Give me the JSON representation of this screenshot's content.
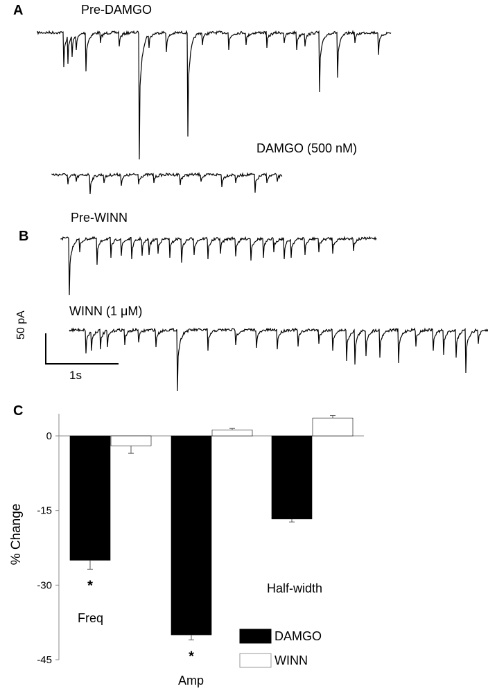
{
  "panels": {
    "a": "A",
    "b": "B",
    "c": "C"
  },
  "traces": {
    "pre_damgo": "Pre-DAMGO",
    "damgo": "DAMGO (500 nM)",
    "pre_winn": "Pre-WINN",
    "winn": "WINN (1 μM)"
  },
  "scale_bar": {
    "current": "50 pA",
    "time": "1s"
  },
  "chart_data": {
    "type": "bar",
    "categories": [
      "Freq",
      "Amp",
      "Half-width"
    ],
    "series": [
      {
        "name": "DAMGO",
        "values": [
          -25,
          -40,
          -16.7
        ],
        "errors": [
          1.8,
          1.0,
          0.6
        ],
        "color": "#000000"
      },
      {
        "name": "WINN",
        "values": [
          -2.0,
          1.2,
          3.6
        ],
        "errors": [
          1.5,
          0.3,
          0.5
        ],
        "color": "#ffffff"
      }
    ],
    "ylabel": "% Change",
    "ylim": [
      -45,
      5
    ],
    "yticks": [
      "0",
      "-15",
      "-30",
      "-45"
    ],
    "significance": [
      "*",
      "*",
      ""
    ],
    "legend_position": "bottom-right"
  }
}
